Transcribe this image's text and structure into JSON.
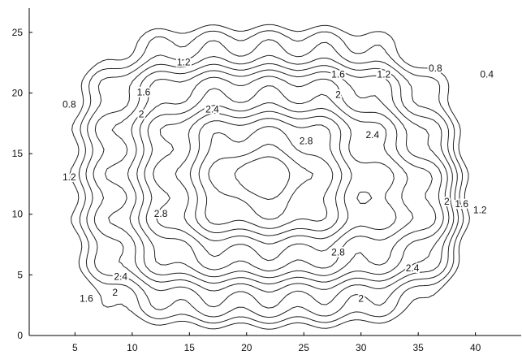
{
  "chart_data": {
    "type": "contour",
    "title": "",
    "xlabel": "",
    "ylabel": "",
    "xlim": [
      1,
      44
    ],
    "ylim": [
      0,
      27
    ],
    "grid": false,
    "x_ticks": [
      5,
      10,
      15,
      20,
      25,
      30,
      35,
      40
    ],
    "y_ticks": [
      0,
      5,
      10,
      15,
      20,
      25
    ],
    "levels": [
      0.4,
      0.8,
      1.2,
      1.6,
      2.0,
      2.4,
      2.8
    ],
    "contour_labels": [
      {
        "text": "1.2",
        "x": 14.5,
        "y": 22.5
      },
      {
        "text": "0.8",
        "x": 36.5,
        "y": 22.0
      },
      {
        "text": "0.4",
        "x": 41.0,
        "y": 21.5
      },
      {
        "text": "1.6",
        "x": 28.0,
        "y": 21.5
      },
      {
        "text": "1.2",
        "x": 32.0,
        "y": 21.5
      },
      {
        "text": "1.6",
        "x": 11.0,
        "y": 20.0
      },
      {
        "text": "0.8",
        "x": 4.5,
        "y": 19.0
      },
      {
        "text": "2",
        "x": 28.0,
        "y": 19.8
      },
      {
        "text": "2",
        "x": 10.8,
        "y": 18.2
      },
      {
        "text": "2.4",
        "x": 17.0,
        "y": 18.6
      },
      {
        "text": "2.4",
        "x": 31.0,
        "y": 16.5
      },
      {
        "text": "2.8",
        "x": 25.2,
        "y": 16.0
      },
      {
        "text": "1.2",
        "x": 4.5,
        "y": 13.0
      },
      {
        "text": "2.8",
        "x": 12.5,
        "y": 10.0
      },
      {
        "text": "1.6",
        "x": 38.8,
        "y": 10.8
      },
      {
        "text": "1.2",
        "x": 40.4,
        "y": 10.3
      },
      {
        "text": "2",
        "x": 37.5,
        "y": 11.0
      },
      {
        "text": "2.8",
        "x": 28.0,
        "y": 6.8
      },
      {
        "text": "2.4",
        "x": 34.5,
        "y": 5.5
      },
      {
        "text": "2.4",
        "x": 9.0,
        "y": 4.8
      },
      {
        "text": "2",
        "x": 8.5,
        "y": 3.5
      },
      {
        "text": "1.6",
        "x": 6.0,
        "y": 3.0
      },
      {
        "text": "2",
        "x": 30.0,
        "y": 3.0
      }
    ]
  }
}
